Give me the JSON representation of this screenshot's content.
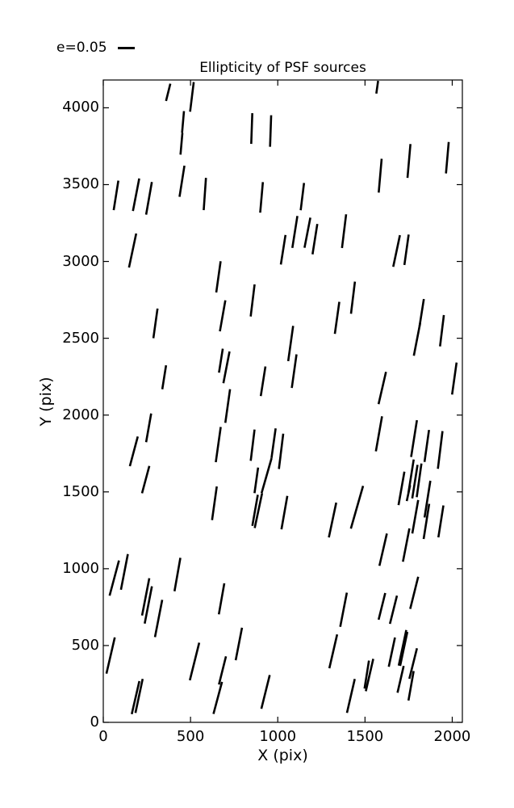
{
  "title": "Ellipticity of PSF sources",
  "legend": {
    "label": "e=0.05"
  },
  "colors": {
    "whisker": "#000000",
    "axes": "#000000",
    "background": "#ffffff"
  },
  "chart_data": {
    "type": "scatter",
    "style": "whisker-quiver (each datum drawn as a short tilted line segment)",
    "title": "Ellipticity of PSF sources",
    "xlabel": "X (pix)",
    "ylabel": "Y (pix)",
    "xlim": [
      0,
      2058
    ],
    "ylim": [
      0,
      4181
    ],
    "xticks": [
      0,
      500,
      1000,
      1500,
      2000
    ],
    "yticks": [
      0,
      500,
      1000,
      1500,
      2000,
      2500,
      3000,
      3500,
      4000
    ],
    "grid": false,
    "legend_position": "above-axes top-left",
    "legend_scale_label": "e=0.05",
    "whisker_format": [
      "x_pix",
      "y_pix",
      "length_screen_px",
      "angle_deg_from_vertical"
    ],
    "whiskers": [
      [
        372,
        4101,
        22,
        14
      ],
      [
        508,
        4071,
        37,
        7
      ],
      [
        457,
        3908,
        27,
        5
      ],
      [
        448,
        3766,
        27,
        5
      ],
      [
        451,
        3522,
        39,
        9
      ],
      [
        582,
        3439,
        40,
        4
      ],
      [
        73,
        3430,
        37,
        9
      ],
      [
        188,
        3434,
        41,
        11
      ],
      [
        262,
        3411,
        41,
        10
      ],
      [
        851,
        3865,
        38,
        2
      ],
      [
        959,
        3849,
        39,
        2
      ],
      [
        907,
        3417,
        38,
        5
      ],
      [
        1141,
        3422,
        34,
        7
      ],
      [
        1570,
        4134,
        16,
        8
      ],
      [
        1587,
        3558,
        42,
        5
      ],
      [
        1752,
        3654,
        42,
        5
      ],
      [
        1972,
        3675,
        39,
        5
      ],
      [
        1031,
        3076,
        37,
        9
      ],
      [
        1098,
        3192,
        40,
        9
      ],
      [
        1170,
        3187,
        38,
        11
      ],
      [
        1213,
        3145,
        38,
        9
      ],
      [
        1380,
        3197,
        42,
        7
      ],
      [
        1681,
        3068,
        40,
        12
      ],
      [
        1738,
        3076,
        38,
        8
      ],
      [
        168,
        3071,
        43,
        12
      ],
      [
        299,
        2597,
        37,
        8
      ],
      [
        660,
        2900,
        39,
        8
      ],
      [
        684,
        2646,
        39,
        10
      ],
      [
        349,
        2246,
        30,
        9
      ],
      [
        674,
        2354,
        30,
        9
      ],
      [
        706,
        2311,
        40,
        11
      ],
      [
        856,
        2746,
        40,
        7
      ],
      [
        1074,
        2466,
        44,
        8
      ],
      [
        1094,
        2286,
        42,
        8
      ],
      [
        916,
        2220,
        37,
        9
      ],
      [
        1340,
        2633,
        40,
        8
      ],
      [
        713,
        2059,
        42,
        8
      ],
      [
        1431,
        2764,
        40,
        7
      ],
      [
        1825,
        2667,
        34,
        9
      ],
      [
        1798,
        2492,
        41,
        11
      ],
      [
        1941,
        2549,
        39,
        7
      ],
      [
        2012,
        2238,
        40,
        8
      ],
      [
        1599,
        2176,
        41,
        13
      ],
      [
        260,
        1917,
        36,
        10
      ],
      [
        175,
        1764,
        38,
        15
      ],
      [
        243,
        1580,
        35,
        15
      ],
      [
        659,
        1808,
        44,
        8
      ],
      [
        637,
        1426,
        42,
        8
      ],
      [
        856,
        1804,
        39,
        7
      ],
      [
        976,
        1817,
        37,
        8
      ],
      [
        1019,
        1764,
        44,
        7
      ],
      [
        936,
        1606,
        45,
        16
      ],
      [
        877,
        1575,
        32,
        8
      ],
      [
        889,
        1378,
        44,
        12
      ],
      [
        870,
        1380,
        39,
        10
      ],
      [
        1038,
        1365,
        42,
        10
      ],
      [
        1314,
        1317,
        44,
        12
      ],
      [
        1580,
        1878,
        44,
        10
      ],
      [
        1781,
        1847,
        46,
        9
      ],
      [
        1854,
        1799,
        40,
        8
      ],
      [
        1931,
        1773,
        47,
        7
      ],
      [
        1709,
        1523,
        42,
        10
      ],
      [
        1764,
        1602,
        42,
        9
      ],
      [
        1786,
        1567,
        42,
        9
      ],
      [
        1810,
        1575,
        42,
        8
      ],
      [
        1749,
        1492,
        20,
        12
      ],
      [
        1454,
        1400,
        55,
        16
      ],
      [
        1858,
        1453,
        46,
        9
      ],
      [
        1935,
        1308,
        40,
        9
      ],
      [
        1852,
        1308,
        44,
        9
      ],
      [
        1788,
        1338,
        42,
        10
      ],
      [
        1736,
        1154,
        42,
        11
      ],
      [
        1604,
        1124,
        41,
        13
      ],
      [
        63,
        939,
        45,
        15
      ],
      [
        121,
        979,
        45,
        11
      ],
      [
        425,
        962,
        42,
        10
      ],
      [
        243,
        817,
        47,
        11
      ],
      [
        258,
        764,
        47,
        11
      ],
      [
        317,
        676,
        47,
        11
      ],
      [
        678,
        804,
        39,
        10
      ],
      [
        42,
        435,
        46,
        13
      ],
      [
        523,
        396,
        48,
        14
      ],
      [
        683,
        338,
        36,
        14
      ],
      [
        656,
        159,
        41,
        15
      ],
      [
        205,
        172,
        43,
        12
      ],
      [
        185,
        161,
        42,
        13
      ],
      [
        777,
        510,
        41,
        11
      ],
      [
        930,
        198,
        43,
        14
      ],
      [
        1377,
        733,
        43,
        11
      ],
      [
        1318,
        462,
        43,
        13
      ],
      [
        1597,
        755,
        34,
        14
      ],
      [
        1663,
        733,
        36,
        14
      ],
      [
        1782,
        843,
        41,
        14
      ],
      [
        1715,
        485,
        45,
        12
      ],
      [
        1722,
        478,
        43,
        12
      ],
      [
        1654,
        457,
        37,
        12
      ],
      [
        1704,
        280,
        34,
        13
      ],
      [
        1776,
        383,
        39,
        14
      ],
      [
        1764,
        238,
        37,
        10
      ],
      [
        1526,
        308,
        41,
        13
      ],
      [
        1510,
        311,
        35,
        9
      ],
      [
        1419,
        172,
        43,
        13
      ]
    ]
  }
}
